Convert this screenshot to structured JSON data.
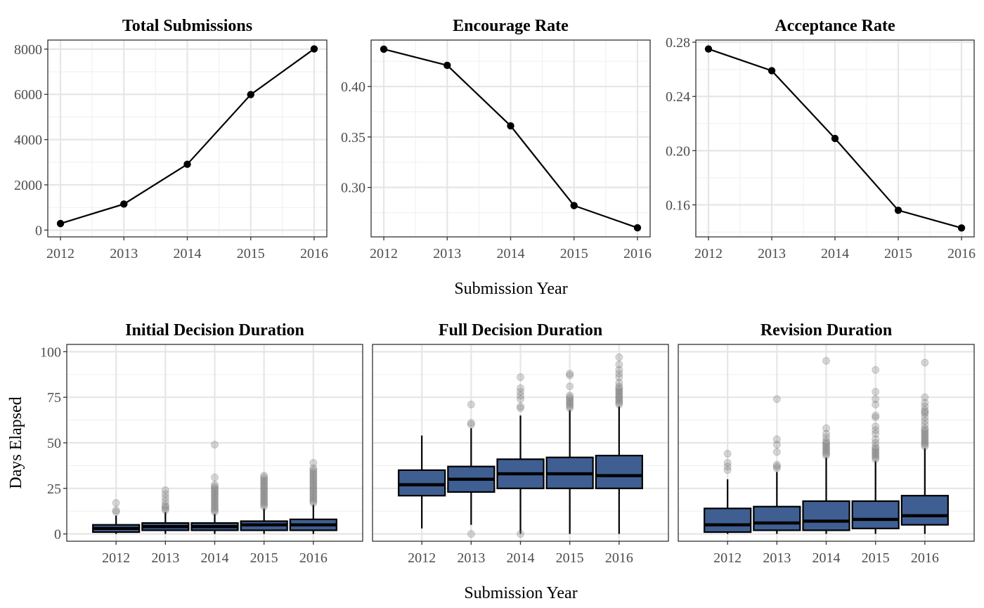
{
  "figure": {
    "shared_xlabel_top": "Submission Year",
    "shared_xlabel_bottom": "Submission Year",
    "shared_ylabel_bottom": "Days Elapsed"
  },
  "colors": {
    "box_fill": "#3f5f93",
    "line": "#000000",
    "outlier": "#8c8c8c"
  },
  "chart_data": [
    {
      "id": "total",
      "type": "line",
      "title": "Total Submissions",
      "x": [
        2012,
        2013,
        2014,
        2015,
        2016
      ],
      "y": [
        290,
        1150,
        2910,
        5990,
        8010
      ],
      "yticks": [
        0,
        2000,
        4000,
        6000,
        8000
      ],
      "ytick_labels": [
        "0",
        "2000",
        "4000",
        "6000",
        "8000"
      ],
      "ylim": [
        -300,
        8400
      ],
      "grid": true
    },
    {
      "id": "encourage",
      "type": "line",
      "title": "Encourage Rate",
      "x": [
        2012,
        2013,
        2014,
        2015,
        2016
      ],
      "y": [
        0.437,
        0.421,
        0.361,
        0.282,
        0.26
      ],
      "yticks": [
        0.3,
        0.35,
        0.4
      ],
      "ytick_labels": [
        "0.30",
        "0.35",
        "0.40"
      ],
      "ylim": [
        0.251,
        0.446
      ],
      "grid": true
    },
    {
      "id": "acceptance",
      "type": "line",
      "title": "Acceptance Rate",
      "x": [
        2012,
        2013,
        2014,
        2015,
        2016
      ],
      "y": [
        0.275,
        0.259,
        0.209,
        0.156,
        0.143
      ],
      "yticks": [
        0.16,
        0.2,
        0.24,
        0.28
      ],
      "ytick_labels": [
        "0.16",
        "0.20",
        "0.24",
        "0.28"
      ],
      "ylim": [
        0.1364,
        0.2816
      ],
      "grid": true
    },
    {
      "id": "initial",
      "type": "box",
      "title": "Initial Decision Duration",
      "categories": [
        "2012",
        "2013",
        "2014",
        "2015",
        "2016"
      ],
      "ylabel": "Days Elapsed",
      "yticks": [
        0,
        25,
        50,
        75,
        100
      ],
      "ytick_labels": [
        "0",
        "25",
        "50",
        "75",
        "100"
      ],
      "ylim": [
        -4,
        104
      ],
      "boxes": [
        {
          "low": 0,
          "q1": 1,
          "median": 3,
          "q3": 5,
          "high": 10,
          "outliers": [
            12,
            13,
            17
          ]
        },
        {
          "low": 0,
          "q1": 2,
          "median": 4,
          "q3": 6,
          "high": 12,
          "outliers": [
            13,
            14,
            15,
            16,
            18,
            20,
            22,
            24
          ]
        },
        {
          "low": 0,
          "q1": 2,
          "median": 4,
          "q3": 6,
          "high": 11,
          "outliers": [
            12,
            13,
            14,
            15,
            16,
            17,
            18,
            19,
            20,
            21,
            22,
            23,
            24,
            25,
            26,
            27,
            31,
            49
          ]
        },
        {
          "low": 0,
          "q1": 2,
          "median": 5,
          "q3": 7,
          "high": 14,
          "outliers": [
            15,
            16,
            17,
            18,
            19,
            20,
            21,
            22,
            23,
            24,
            25,
            26,
            27,
            28,
            29,
            30,
            31,
            32
          ]
        },
        {
          "low": 0,
          "q1": 2,
          "median": 5,
          "q3": 8,
          "high": 16,
          "outliers": [
            17,
            18,
            19,
            20,
            21,
            22,
            23,
            24,
            25,
            26,
            27,
            28,
            29,
            30,
            31,
            32,
            33,
            34,
            35,
            36,
            39
          ]
        }
      ]
    },
    {
      "id": "full",
      "type": "box",
      "title": "Full Decision Duration",
      "categories": [
        "2012",
        "2013",
        "2014",
        "2015",
        "2016"
      ],
      "ylim": [
        -4,
        104
      ],
      "boxes": [
        {
          "low": 3,
          "q1": 21,
          "median": 27,
          "q3": 35,
          "high": 54,
          "outliers": []
        },
        {
          "low": 5,
          "q1": 23,
          "median": 30,
          "q3": 37,
          "high": 58,
          "outliers": [
            0,
            60,
            61,
            71
          ]
        },
        {
          "low": 0,
          "q1": 25,
          "median": 33,
          "q3": 41,
          "high": 65,
          "outliers": [
            0,
            69,
            70,
            74,
            76,
            78,
            80,
            86
          ]
        },
        {
          "low": 0,
          "q1": 25,
          "median": 33,
          "q3": 42,
          "high": 68,
          "outliers": [
            69,
            70,
            71,
            72,
            73,
            74,
            75,
            76,
            81,
            87,
            88
          ]
        },
        {
          "low": 0,
          "q1": 25,
          "median": 32,
          "q3": 43,
          "high": 70,
          "outliers": [
            71,
            72,
            73,
            74,
            75,
            76,
            77,
            78,
            79,
            80,
            81,
            83,
            86,
            88,
            90,
            93,
            97
          ]
        }
      ]
    },
    {
      "id": "revision",
      "type": "box",
      "title": "Revision Duration",
      "categories": [
        "2012",
        "2013",
        "2014",
        "2015",
        "2016"
      ],
      "ylim": [
        -4,
        104
      ],
      "boxes": [
        {
          "low": 0,
          "q1": 1,
          "median": 5,
          "q3": 14,
          "high": 30,
          "outliers": [
            35,
            37,
            39,
            44
          ]
        },
        {
          "low": 0,
          "q1": 2,
          "median": 6,
          "q3": 15,
          "high": 34,
          "outliers": [
            36,
            37,
            38,
            45,
            49,
            52,
            74
          ]
        },
        {
          "low": 0,
          "q1": 2,
          "median": 7,
          "q3": 18,
          "high": 42,
          "outliers": [
            43,
            44,
            45,
            46,
            47,
            48,
            49,
            50,
            51,
            53,
            55,
            58,
            95
          ]
        },
        {
          "low": 0,
          "q1": 3,
          "median": 8,
          "q3": 18,
          "high": 40,
          "outliers": [
            41,
            42,
            43,
            44,
            45,
            46,
            47,
            48,
            50,
            52,
            55,
            57,
            59,
            64,
            65,
            71,
            74,
            78,
            90
          ]
        },
        {
          "low": 0,
          "q1": 5,
          "median": 10,
          "q3": 21,
          "high": 47,
          "outliers": [
            48,
            49,
            50,
            51,
            52,
            53,
            54,
            55,
            56,
            57,
            58,
            60,
            62,
            64,
            66,
            67,
            68,
            70,
            72,
            75,
            94
          ]
        }
      ]
    }
  ]
}
